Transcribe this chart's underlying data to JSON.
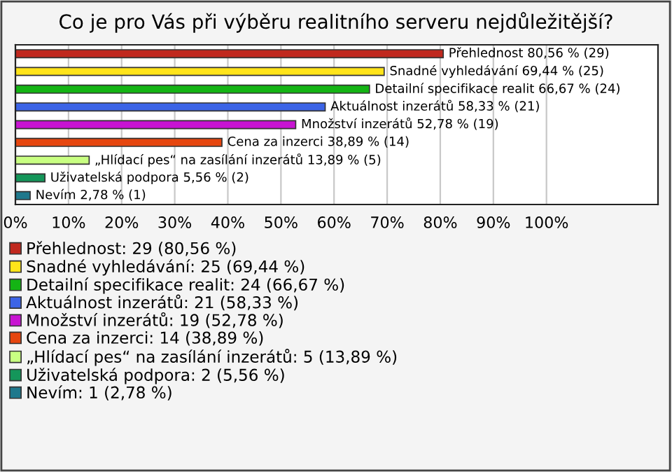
{
  "chart_data": {
    "type": "bar",
    "orientation": "horizontal",
    "title": "Co je pro Vás při výběru realitního serveru nejdůležitější?",
    "categories": [
      null,
      null,
      null,
      null,
      null,
      null,
      null,
      null,
      null
    ],
    "series": [
      {
        "name": "Přehlednost: 29 (80,56 %)",
        "color": "#c0281e",
        "values": [
          80.56,
          null,
          null,
          null,
          null,
          null,
          null,
          null,
          null
        ],
        "value_labels": [
          "Přehlednost 80,56 % (29)",
          null,
          null,
          null,
          null,
          null,
          null,
          null,
          null
        ]
      },
      {
        "name": "Snadné vyhledávání: 25 (69,44 %)",
        "color": "#ffe41a",
        "values": [
          null,
          69.44,
          null,
          null,
          null,
          null,
          null,
          null,
          null
        ],
        "value_labels": [
          null,
          "Snadné vyhledávání 69,44 % (25)",
          null,
          null,
          null,
          null,
          null,
          null,
          null
        ]
      },
      {
        "name": "Detailní specifikace realit: 24 (66,67 %)",
        "color": "#14b414",
        "values": [
          null,
          null,
          66.67,
          null,
          null,
          null,
          null,
          null,
          null
        ],
        "value_labels": [
          null,
          null,
          "Detailní specifikace realit 66,67 % (24)",
          null,
          null,
          null,
          null,
          null,
          null
        ]
      },
      {
        "name": "Aktuálnost inzerátů: 21 (58,33 %)",
        "color": "#3c64e6",
        "values": [
          null,
          null,
          null,
          58.33,
          null,
          null,
          null,
          null,
          null
        ],
        "value_labels": [
          null,
          null,
          null,
          "Aktuálnost inzerátů 58,33 % (21)",
          null,
          null,
          null,
          null,
          null
        ]
      },
      {
        "name": "Množství inzerátů: 19 (52,78 %)",
        "color": "#c814d2",
        "values": [
          null,
          null,
          null,
          null,
          52.78,
          null,
          null,
          null,
          null
        ],
        "value_labels": [
          null,
          null,
          null,
          null,
          "Množství inzerátů 52,78 % (19)",
          null,
          null,
          null,
          null
        ]
      },
      {
        "name": "Cena za inzerci: 14 (38,89 %)",
        "color": "#e6460f",
        "values": [
          null,
          null,
          null,
          null,
          null,
          38.89,
          null,
          null,
          null
        ],
        "value_labels": [
          null,
          null,
          null,
          null,
          null,
          "Cena za inzerci 38,89 % (14)",
          null,
          null,
          null
        ]
      },
      {
        "name": "„Hlídací pes“ na zasílání inzerátů: 5 (13,89 %)",
        "color": "#c8ff82",
        "values": [
          null,
          null,
          null,
          null,
          null,
          null,
          13.89,
          null,
          null
        ],
        "value_labels": [
          null,
          null,
          null,
          null,
          null,
          null,
          "„Hlídací pes“ na zasílání inzerátů 13,89 % (5)",
          null,
          null
        ]
      },
      {
        "name": "Uživatelská podpora: 2 (5,56 %)",
        "color": "#14965a",
        "values": [
          null,
          null,
          null,
          null,
          null,
          null,
          null,
          5.56,
          null
        ],
        "value_labels": [
          null,
          null,
          null,
          null,
          null,
          null,
          null,
          "Uživatelská podpora 5,56 % (2)",
          null
        ]
      },
      {
        "name": "Nevím: 1 (2,78 %)",
        "color": "#1e788c",
        "values": [
          null,
          null,
          null,
          null,
          null,
          null,
          null,
          null,
          2.78
        ],
        "value_labels": [
          null,
          null,
          null,
          null,
          null,
          null,
          null,
          null,
          "Nevím 2,78 % (1)"
        ]
      }
    ],
    "xlim": [
      0,
      121
    ],
    "xticks": [
      {
        "value": 0,
        "label": "0%"
      },
      {
        "value": 10,
        "label": "10%"
      },
      {
        "value": 20,
        "label": "20%"
      },
      {
        "value": 30,
        "label": "30%"
      },
      {
        "value": 40,
        "label": "40%"
      },
      {
        "value": 50,
        "label": "50%"
      },
      {
        "value": 60,
        "label": "60%"
      },
      {
        "value": 70,
        "label": "70%"
      },
      {
        "value": 80,
        "label": "80%"
      },
      {
        "value": 90,
        "label": "90%"
      },
      {
        "value": 100,
        "label": "100%"
      }
    ],
    "grid": "x",
    "legend": "bottom"
  }
}
